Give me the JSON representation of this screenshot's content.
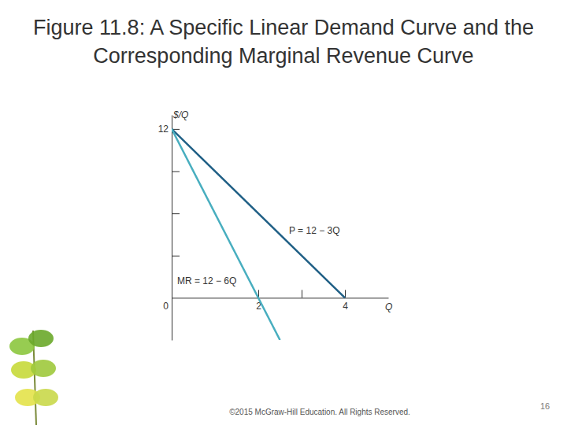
{
  "chart_data": {
    "type": "line",
    "title": "Figure 11.8: A Specific Linear Demand Curve and the Corresponding Marginal Revenue Curve",
    "x_label": "Q",
    "y_label": "$/Q",
    "xlim": [
      0,
      5
    ],
    "ylim": [
      -3,
      13
    ],
    "xticks": [
      0,
      2,
      {
        "value": 3,
        "label": null
      },
      4
    ],
    "yticks": [
      {
        "value": 3,
        "label": null
      },
      {
        "value": 6,
        "label": null
      },
      {
        "value": 9,
        "label": null
      },
      12
    ],
    "grid": false,
    "series": [
      {
        "name": "P = 12 − 3Q",
        "color": "#1f5f85",
        "x": [
          0,
          4
        ],
        "values": [
          12,
          0
        ]
      },
      {
        "name": "MR = 12 − 6Q",
        "color": "#48aebf",
        "x": [
          0,
          2.5
        ],
        "values": [
          12,
          -3
        ]
      }
    ],
    "footer": "©2015 McGraw-Hill Education. All Rights Reserved.",
    "page_number": "16"
  }
}
